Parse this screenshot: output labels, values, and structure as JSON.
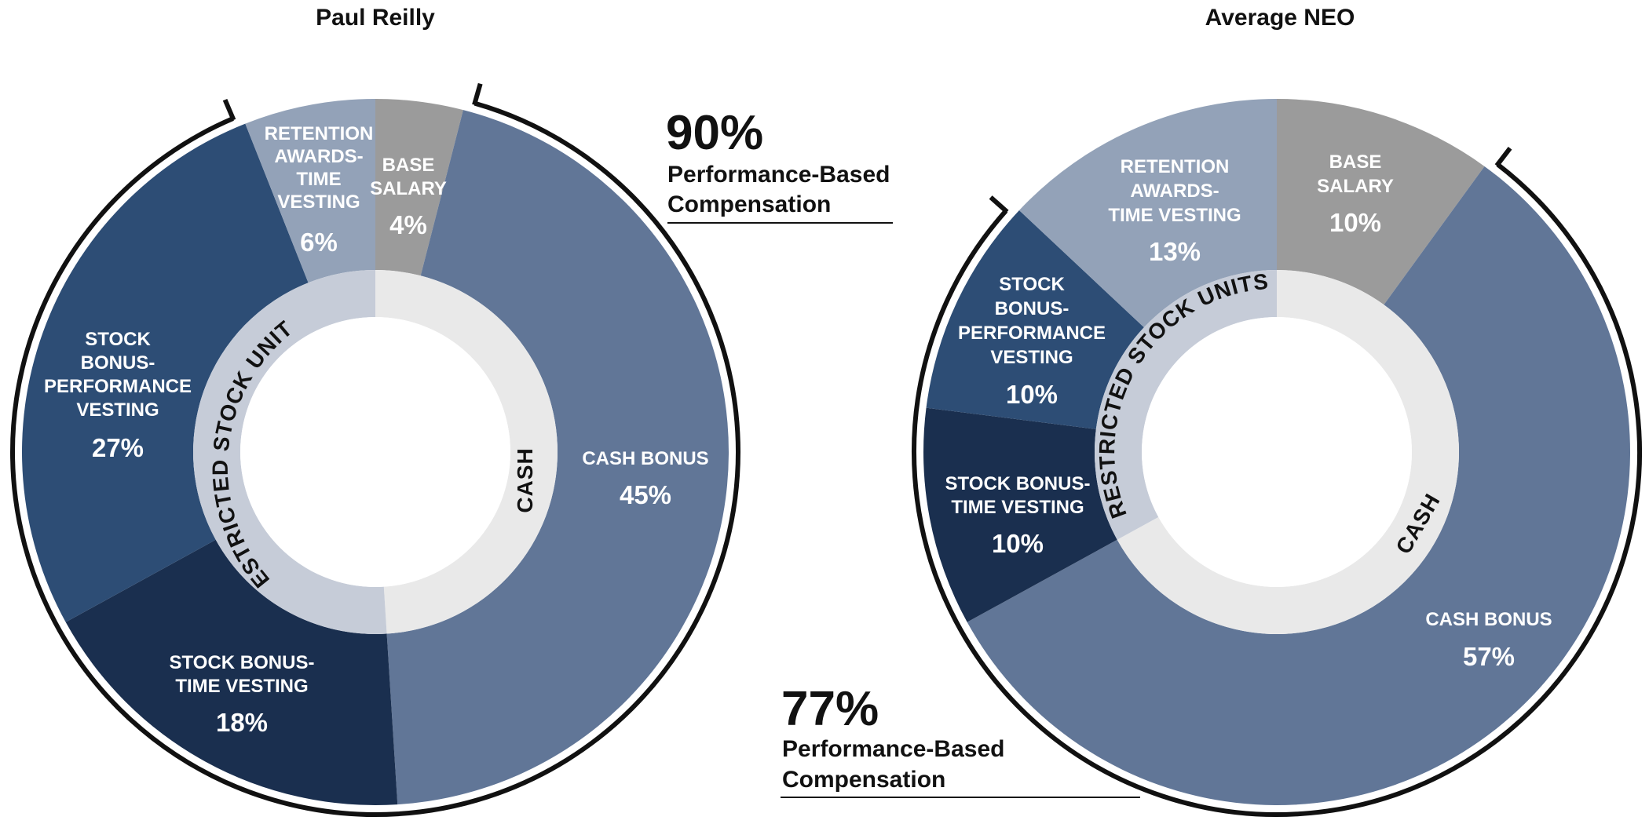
{
  "chart_data": [
    {
      "type": "pie",
      "title": "Paul Reilly",
      "slices": [
        {
          "label": "BASE SALARY",
          "value": 4,
          "pct": "4%",
          "color": "#9b9b9b"
        },
        {
          "label": "CASH BONUS",
          "value": 45,
          "pct": "45%",
          "color": "#617697"
        },
        {
          "label": "STOCK BONUS- TIME VESTING",
          "value": 18,
          "pct": "18%",
          "color": "#1a2f4f"
        },
        {
          "label": "STOCK BONUS- PERFORMANCE VESTING",
          "value": 27,
          "pct": "27%",
          "color": "#2d4d75"
        },
        {
          "label": "RETENTION AWARDS- TIME VESTING",
          "value": 6,
          "pct": "6%",
          "color": "#93a2b8"
        }
      ],
      "inner_ring": [
        {
          "label": "CASH",
          "value": 49,
          "color": "#e9e9e9"
        },
        {
          "label": "RESTRICTED STOCK UNITS",
          "value": 51,
          "color": "#c6ccd8"
        }
      ],
      "performance_based": {
        "pct": "90%",
        "text_line1": "Performance-Based",
        "text_line2": "Compensation"
      }
    },
    {
      "type": "pie",
      "title": "Average NEO",
      "slices": [
        {
          "label": "BASE SALARY",
          "value": 10,
          "pct": "10%",
          "color": "#9b9b9b"
        },
        {
          "label": "CASH BONUS",
          "value": 57,
          "pct": "57%",
          "color": "#617697"
        },
        {
          "label": "STOCK BONUS- TIME VESTING",
          "value": 10,
          "pct": "10%",
          "color": "#1a2f4f"
        },
        {
          "label": "STOCK BONUS- PERFORMANCE VESTING",
          "value": 10,
          "pct": "10%",
          "color": "#2d4d75"
        },
        {
          "label": "RETENTION AWARDS- TIME VESTING",
          "value": 13,
          "pct": "13%",
          "color": "#93a2b8"
        }
      ],
      "inner_ring": [
        {
          "label": "CASH",
          "value": 67,
          "color": "#e9e9e9"
        },
        {
          "label": "RESTRICTED STOCK UNITS",
          "value": 33,
          "color": "#c6ccd8"
        }
      ],
      "performance_based": {
        "pct": "77%",
        "text_line1": "Performance-Based",
        "text_line2": "Compensation"
      }
    }
  ]
}
